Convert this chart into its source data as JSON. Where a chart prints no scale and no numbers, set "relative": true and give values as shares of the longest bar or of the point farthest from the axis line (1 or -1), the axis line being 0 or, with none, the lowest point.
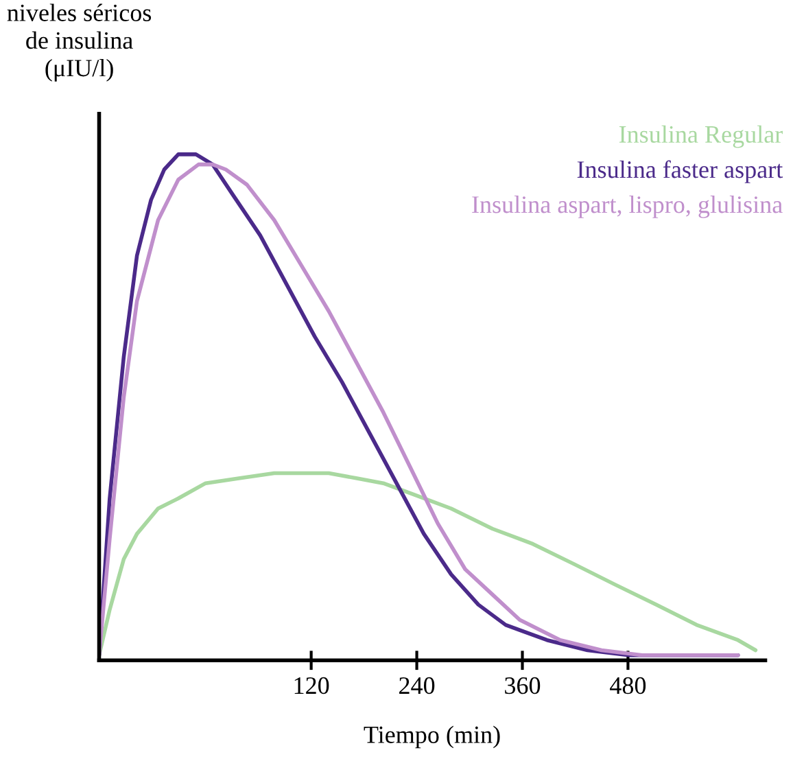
{
  "chart_data": {
    "type": "line",
    "relative": true,
    "ylabel": "niveles séricos\nde insulina\n(μIU/l)",
    "xlabel": "Tiempo (min)",
    "xlim": [
      -121,
      636
    ],
    "xticks": [
      120,
      240,
      360,
      480
    ],
    "grid": false,
    "legend": "top right",
    "marker": "none",
    "line_style": "solid",
    "series": [
      {
        "name": "Insulina Regular",
        "color": "#a8d8a0",
        "x": [
          -121,
          -109,
          -93,
          -78,
          -54,
          -31,
          0,
          39,
          78,
          140,
          171,
          202,
          233,
          279,
          326,
          372,
          419,
          465,
          512,
          558,
          605,
          625
        ],
        "values": [
          0.01,
          0.1,
          0.2,
          0.25,
          0.3,
          0.32,
          0.35,
          0.36,
          0.37,
          0.37,
          0.36,
          0.35,
          0.33,
          0.3,
          0.26,
          0.23,
          0.19,
          0.15,
          0.11,
          0.07,
          0.04,
          0.02
        ]
      },
      {
        "name": "Insulina faster aspart",
        "color": "#4b2a8a",
        "x": [
          -121,
          -109,
          -93,
          -78,
          -62,
          -47,
          -31,
          -11,
          8,
          31,
          62,
          93,
          124,
          155,
          186,
          217,
          248,
          279,
          310,
          341,
          388,
          434,
          481,
          543,
          605
        ],
        "values": [
          0.01,
          0.32,
          0.6,
          0.8,
          0.91,
          0.97,
          1.0,
          1.0,
          0.98,
          0.92,
          0.84,
          0.74,
          0.64,
          0.55,
          0.45,
          0.35,
          0.25,
          0.17,
          0.11,
          0.07,
          0.04,
          0.02,
          0.01,
          0.01,
          0.01
        ]
      },
      {
        "name": "Insulina aspart, lispro, glulisina",
        "color": "#c08fcc",
        "x": [
          -121,
          -109,
          -93,
          -78,
          -54,
          -31,
          -8,
          8,
          23,
          47,
          78,
          109,
          140,
          171,
          202,
          233,
          264,
          295,
          326,
          357,
          403,
          450,
          496,
          543,
          605
        ],
        "values": [
          0.01,
          0.24,
          0.52,
          0.71,
          0.87,
          0.95,
          0.98,
          0.98,
          0.97,
          0.94,
          0.87,
          0.78,
          0.69,
          0.59,
          0.49,
          0.38,
          0.27,
          0.18,
          0.13,
          0.08,
          0.04,
          0.02,
          0.01,
          0.01,
          0.01
        ]
      }
    ]
  }
}
